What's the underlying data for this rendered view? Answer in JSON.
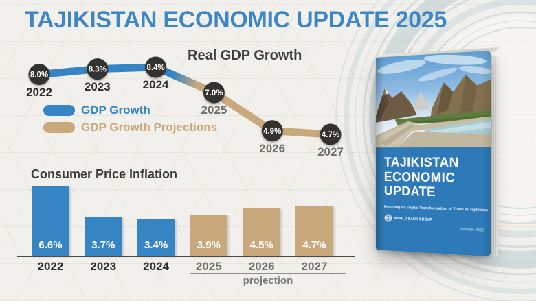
{
  "title": "TAJIKISTAN ECONOMIC UPDATE 2025",
  "colors": {
    "title_blue": "#3e86c6",
    "actual_blue": "#3585c4",
    "projection_tan": "#c9a87c",
    "dot_dark": "#33322f",
    "background": "#f2f0ec"
  },
  "legend": [
    {
      "label": "GDP Growth",
      "color": "#3585c4"
    },
    {
      "label": "GDP Growth Projections",
      "color": "#c9a87c"
    }
  ],
  "chart_data": [
    {
      "type": "line",
      "title": "Real GDP Growth",
      "categories": [
        "2022",
        "2023",
        "2024",
        "2025",
        "2026",
        "2027"
      ],
      "values": [
        8.0,
        8.3,
        8.4,
        7.0,
        4.9,
        4.7
      ],
      "labels": [
        "8.0%",
        "8.3%",
        "8.4%",
        "7.0%",
        "4.9%",
        "4.7%"
      ],
      "actual_count": 3,
      "legend": [
        "GDP Growth",
        "GDP Growth Projections"
      ],
      "legend_position": "below-left",
      "grid": false,
      "ylim": [
        4,
        9
      ]
    },
    {
      "type": "bar",
      "title": "Consumer Price Inflation",
      "categories": [
        "2022",
        "2023",
        "2024",
        "2025",
        "2026",
        "2027"
      ],
      "values": [
        6.6,
        3.7,
        3.4,
        3.9,
        4.5,
        4.7
      ],
      "labels": [
        "6.6%",
        "3.7%",
        "3.4%",
        "3.9%",
        "4.5%",
        "4.7%"
      ],
      "actual_count": 3,
      "projection_label": "projection",
      "grid": false,
      "ylim": [
        0,
        7
      ]
    }
  ],
  "book": {
    "title_lines": [
      "TAJIKISTAN",
      "ECONOMIC",
      "UPDATE"
    ],
    "subtitle": "Focusing on Digital Transformation of Trade in Tajikistan",
    "publisher": "WORLD BANK GROUP",
    "edition": "Summer 2025"
  }
}
